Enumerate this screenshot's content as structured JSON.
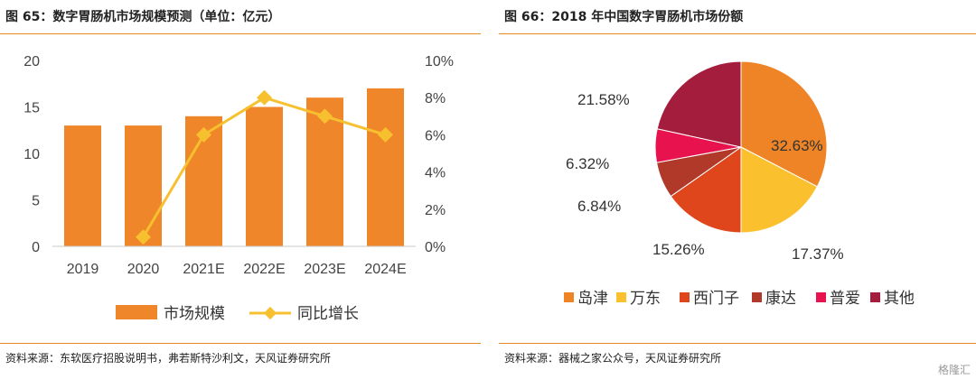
{
  "left": {
    "title": "图 65：数字胃肠机市场规模预测（单位：亿元）",
    "source": "资料来源：东软医疗招股说明书，弗若斯特沙利文，天风证券研究所"
  },
  "right": {
    "title": "图 66：2018 年中国数字胃肠机市场份额",
    "source": "资料来源：器械之家公众号，天风证券研究所"
  },
  "watermark": "格隆汇",
  "colors": {
    "accent": "#e58a2b",
    "bar": "#f0862a",
    "line": "#f7c02f"
  },
  "chart_data": [
    {
      "type": "bar",
      "categories": [
        "2019",
        "2020",
        "2021E",
        "2022E",
        "2023E",
        "2024E"
      ],
      "series": [
        {
          "name": "市场规模",
          "axis": "left",
          "values": [
            13,
            13,
            14,
            15,
            16,
            17
          ]
        },
        {
          "name": "同比增长",
          "type": "line",
          "axis": "right",
          "values": [
            null,
            0.5,
            6,
            8,
            7,
            6
          ]
        }
      ],
      "left_axis": {
        "min": 0,
        "max": 20,
        "ticks": [
          "0",
          "5",
          "10",
          "15",
          "20"
        ]
      },
      "right_axis": {
        "min": 0,
        "max": 10,
        "ticks": [
          "0%",
          "2%",
          "4%",
          "6%",
          "8%",
          "10%"
        ]
      },
      "legend": "bottom",
      "grid": false
    },
    {
      "type": "pie",
      "labels": [
        "岛津",
        "万东",
        "西门子",
        "康达",
        "普爱",
        "其他"
      ],
      "values": [
        32.63,
        17.37,
        15.26,
        6.84,
        6.32,
        21.58
      ],
      "value_labels": [
        "32.63%",
        "17.37%",
        "15.26%",
        "6.84%",
        "6.32%",
        "21.58%"
      ],
      "colors": [
        "#ef8427",
        "#fbc02d",
        "#e0461c",
        "#b0392a",
        "#e8124f",
        "#a51d3c"
      ],
      "legend": "bottom"
    }
  ]
}
